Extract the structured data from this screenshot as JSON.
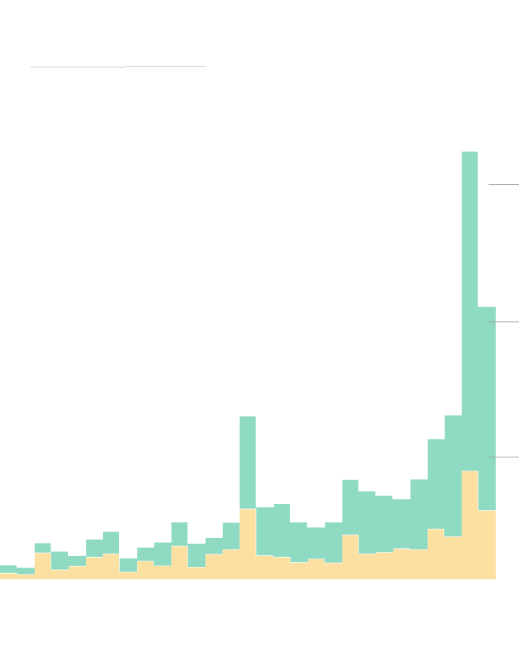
{
  "chart_data": {
    "type": "area",
    "stacked": true,
    "step": true,
    "title": "",
    "xlabel": "",
    "ylabel": "",
    "x_count": 29,
    "ylim": [
      0,
      100
    ],
    "grid": false,
    "legend": "none",
    "reference_lines": [
      {
        "y": 92
      },
      {
        "y": 60
      },
      {
        "y": 28.5
      }
    ],
    "series": [
      {
        "color": "#fbe0a1",
        "values": [
          1.5,
          1.2,
          6.2,
          2.3,
          3.1,
          5.2,
          6.0,
          1.8,
          4.3,
          3.2,
          7.8,
          2.9,
          5.9,
          7.0,
          16.5,
          5.6,
          5.2,
          4.0,
          4.8,
          3.9,
          10.4,
          6.0,
          6.3,
          7.2,
          7.0,
          11.8,
          10.0,
          25.3,
          16.1
        ]
      },
      {
        "color": "#8fdac2",
        "values": [
          1.9,
          1.6,
          2.3,
          4.3,
          2.5,
          4.2,
          5.2,
          3.2,
          3.2,
          5.5,
          5.6,
          5.5,
          3.9,
          6.3,
          21.6,
          11.3,
          12.5,
          9.4,
          7.4,
          9.5,
          12.9,
          14.6,
          13.3,
          11.6,
          16.4,
          21.0,
          28.3,
          74.5,
          47.5
        ]
      }
    ]
  }
}
